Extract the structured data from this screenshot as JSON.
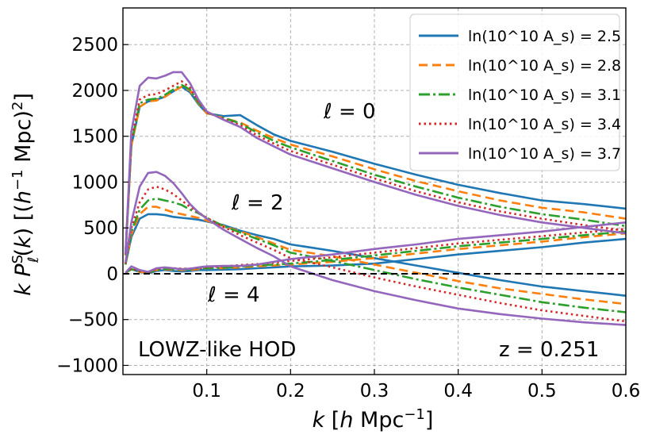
{
  "chart_data": {
    "type": "line",
    "xlabel": "k [h Mpc^-1]",
    "ylabel": "k P_l^S(k) [(h^-1 Mpc)^2]",
    "xlim": [
      0.0,
      0.6
    ],
    "ylim": [
      -1100,
      2900
    ],
    "grid": true,
    "legend_position": "top-right",
    "x_ticks": [
      0.1,
      0.2,
      0.3,
      0.4,
      0.5,
      0.6
    ],
    "x_tick_labels": [
      "0.1",
      "0.2",
      "0.3",
      "0.4",
      "0.5",
      "0.6"
    ],
    "y_ticks": [
      -1000,
      -500,
      0,
      500,
      1000,
      1500,
      2000,
      2500
    ],
    "y_tick_labels": [
      "−1000",
      "−500",
      "0",
      "500",
      "1000",
      "1500",
      "2000",
      "2500"
    ],
    "annotations": {
      "l0": "ℓ = 0",
      "l2": "ℓ = 2",
      "l4": "ℓ = 4",
      "hod": "LOWZ-like HOD",
      "redshift": "z = 0.251"
    },
    "x": [
      0.003,
      0.01,
      0.02,
      0.03,
      0.04,
      0.05,
      0.06,
      0.07,
      0.08,
      0.09,
      0.1,
      0.12,
      0.14,
      0.16,
      0.18,
      0.2,
      0.25,
      0.3,
      0.35,
      0.4,
      0.45,
      0.5,
      0.55,
      0.6
    ],
    "series": [
      {
        "name": "ln(10^10 A_s) = 2.5",
        "color": "#1f77b4",
        "dash": "solid",
        "l0": [
          200,
          1400,
          1820,
          1880,
          1900,
          1930,
          1990,
          2040,
          1980,
          1850,
          1750,
          1720,
          1730,
          1620,
          1520,
          1450,
          1330,
          1200,
          1080,
          970,
          880,
          800,
          760,
          710
        ],
        "l2": [
          100,
          400,
          600,
          650,
          650,
          640,
          620,
          610,
          600,
          590,
          570,
          530,
          470,
          420,
          380,
          320,
          250,
          170,
          90,
          10,
          -70,
          -140,
          -190,
          -240
        ],
        "l4": [
          10,
          50,
          20,
          5,
          30,
          40,
          30,
          25,
          30,
          40,
          40,
          45,
          50,
          60,
          70,
          80,
          90,
          110,
          160,
          210,
          250,
          290,
          340,
          380
        ]
      },
      {
        "name": "ln(10^10 A_s) = 2.8",
        "color": "#ff7f0e",
        "dash": "11 6",
        "l0": [
          200,
          1400,
          1820,
          1880,
          1890,
          1930,
          1990,
          2040,
          2000,
          1860,
          1750,
          1700,
          1650,
          1560,
          1480,
          1410,
          1280,
          1140,
          1010,
          900,
          800,
          720,
          670,
          600
        ],
        "l2": [
          100,
          430,
          650,
          730,
          730,
          700,
          670,
          650,
          630,
          610,
          580,
          520,
          460,
          400,
          330,
          260,
          190,
          100,
          10,
          -80,
          -160,
          -220,
          -280,
          -330
        ],
        "l4": [
          10,
          50,
          20,
          10,
          40,
          50,
          40,
          40,
          40,
          50,
          60,
          60,
          70,
          80,
          90,
          100,
          130,
          170,
          220,
          270,
          310,
          350,
          400,
          440
        ]
      },
      {
        "name": "ln(10^10 A_s) = 3.1",
        "color": "#2ca02c",
        "dash": "14 4 3 4",
        "l0": [
          210,
          1420,
          1860,
          1900,
          1910,
          1950,
          2010,
          2060,
          2010,
          1870,
          1760,
          1700,
          1640,
          1540,
          1450,
          1380,
          1230,
          1080,
          950,
          830,
          730,
          650,
          590,
          520
        ],
        "l2": [
          100,
          460,
          700,
          800,
          820,
          800,
          780,
          750,
          700,
          660,
          610,
          520,
          450,
          380,
          310,
          230,
          140,
          40,
          -60,
          -150,
          -230,
          -310,
          -370,
          -420
        ],
        "l4": [
          10,
          50,
          25,
          10,
          40,
          55,
          50,
          45,
          50,
          60,
          60,
          65,
          80,
          90,
          100,
          110,
          150,
          200,
          250,
          300,
          340,
          380,
          420,
          460
        ]
      },
      {
        "name": "ln(10^10 A_s) = 3.4",
        "color": "#d62728",
        "dash": "2.5 4",
        "l0": [
          215,
          1450,
          1900,
          1950,
          1960,
          2000,
          2050,
          2100,
          2030,
          1880,
          1760,
          1690,
          1620,
          1510,
          1420,
          1340,
          1190,
          1040,
          900,
          780,
          680,
          600,
          530,
          470
        ],
        "l2": [
          110,
          500,
          780,
          920,
          950,
          920,
          870,
          800,
          730,
          670,
          610,
          510,
          420,
          340,
          260,
          170,
          70,
          -40,
          -140,
          -230,
          -320,
          -400,
          -460,
          -520
        ],
        "l4": [
          10,
          60,
          30,
          15,
          50,
          65,
          60,
          55,
          55,
          60,
          70,
          80,
          95,
          105,
          120,
          140,
          180,
          230,
          280,
          330,
          370,
          410,
          450,
          490
        ]
      },
      {
        "name": "ln(10^10 A_s) = 3.7",
        "color": "#9467bd",
        "dash": "solid",
        "l0": [
          220,
          1550,
          2050,
          2140,
          2130,
          2160,
          2200,
          2200,
          2080,
          1900,
          1770,
          1680,
          1600,
          1480,
          1390,
          1300,
          1150,
          1000,
          860,
          740,
          640,
          560,
          500,
          440
        ],
        "l2": [
          120,
          560,
          950,
          1100,
          1110,
          1070,
          990,
          880,
          760,
          670,
          600,
          480,
          380,
          280,
          190,
          80,
          -70,
          -190,
          -290,
          -380,
          -440,
          -490,
          -530,
          -560
        ],
        "l4": [
          10,
          80,
          40,
          20,
          60,
          70,
          60,
          50,
          55,
          70,
          80,
          85,
          85,
          100,
          130,
          160,
          210,
          270,
          320,
          380,
          420,
          460,
          510,
          560
        ]
      }
    ]
  }
}
